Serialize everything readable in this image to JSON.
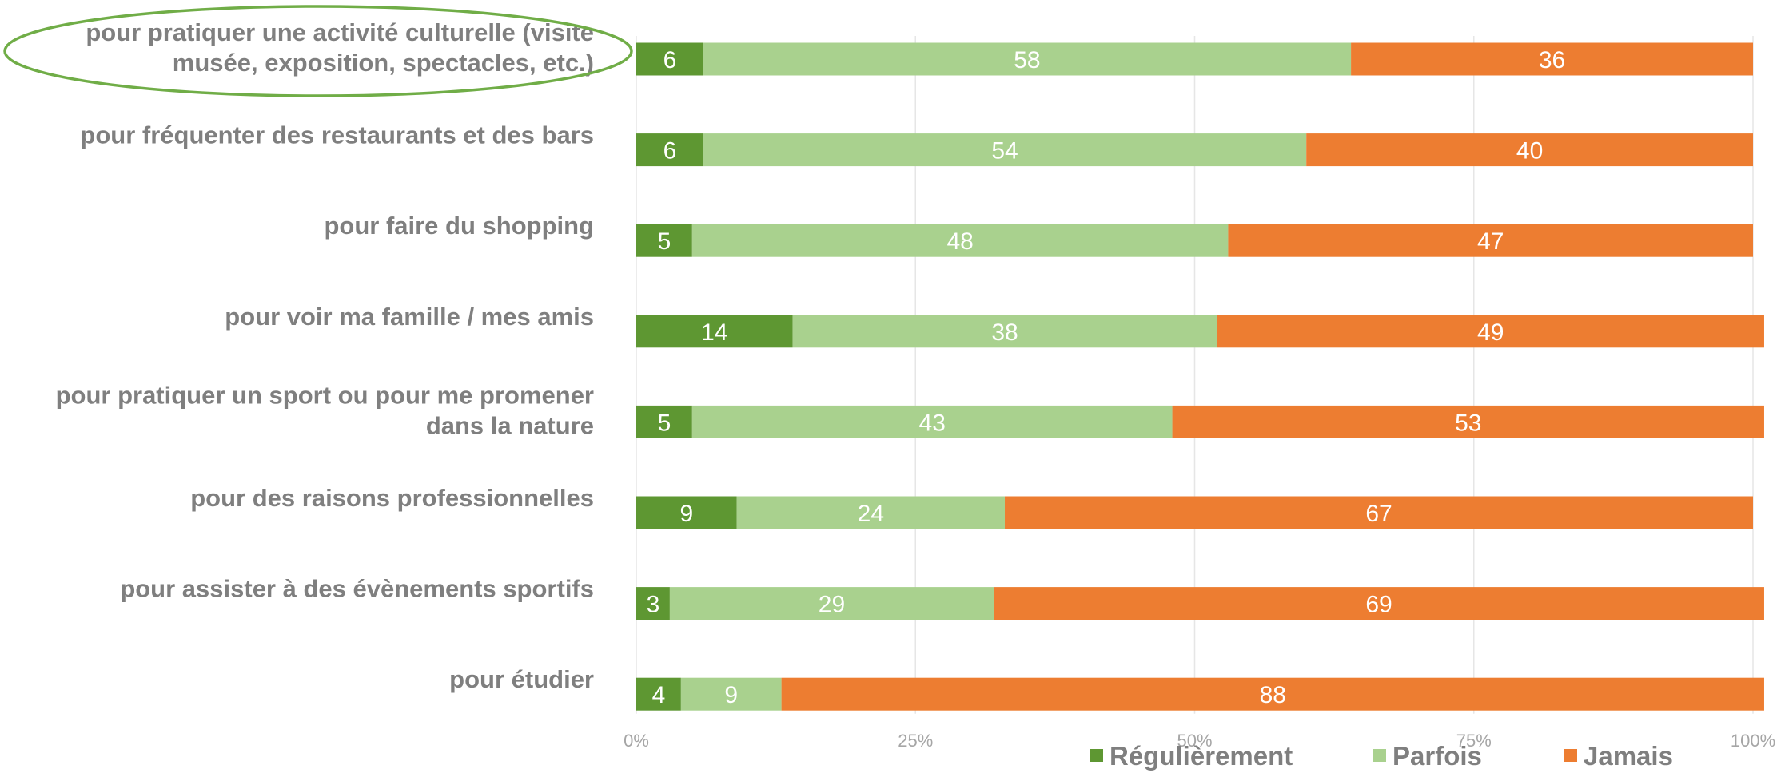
{
  "chart_data": {
    "type": "bar",
    "orientation": "horizontal",
    "stacked": true,
    "categories": [
      [
        "pour pratiquer une activité culturelle (visite",
        "musée, exposition, spectacles, etc.)"
      ],
      [
        "pour fréquenter des restaurants et des bars"
      ],
      [
        "pour faire du shopping"
      ],
      [
        "pour voir ma famille / mes amis"
      ],
      [
        "pour pratiquer un sport ou pour me promener",
        "dans la nature"
      ],
      [
        "pour des raisons professionnelles"
      ],
      [
        "pour assister à des évènements sportifs"
      ],
      [
        "pour étudier"
      ]
    ],
    "series": [
      {
        "name": "Régulièrement",
        "color": "#5e9732",
        "values": [
          6,
          6,
          5,
          14,
          5,
          9,
          3,
          4
        ]
      },
      {
        "name": "Parfois",
        "color": "#a9d18e",
        "values": [
          58,
          54,
          48,
          38,
          43,
          24,
          29,
          9
        ]
      },
      {
        "name": "Jamais",
        "color": "#ed7d31",
        "values": [
          36,
          40,
          47,
          49,
          53,
          67,
          69,
          88
        ]
      }
    ],
    "xlim": [
      0,
      100
    ],
    "xticks": [
      "0%",
      "25%",
      "50%",
      "75%",
      "100%"
    ],
    "grid": true,
    "legend_position": "bottom",
    "highlight": {
      "category_index": 0,
      "shape": "ellipse",
      "color": "#70ad47"
    }
  }
}
